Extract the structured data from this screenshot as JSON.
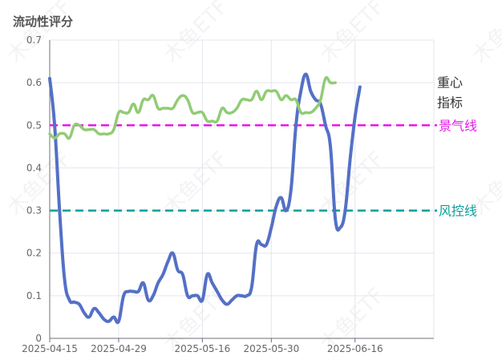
{
  "chart_data": {
    "type": "line",
    "title": "流动性评分",
    "watermark": "木鱼ETF",
    "ylim": [
      0,
      0.7
    ],
    "y_ticks": [
      "0",
      "0.1",
      "0.2",
      "0.3",
      "0.4",
      "0.5",
      "0.6",
      "0.7"
    ],
    "x_range": [
      "2025-04-15",
      "2025-07-02"
    ],
    "x_ticks": [
      "2025-04-15",
      "2025-04-29",
      "2025-05-16",
      "2025-05-30",
      "2025-06-16"
    ],
    "grid": true,
    "series": [
      {
        "name": "重心指标",
        "label_lines": [
          "重心",
          "指标"
        ],
        "color": "#5470c6",
        "points": [
          [
            "2025-04-15",
            0.61
          ],
          [
            "2025-04-16",
            0.5
          ],
          [
            "2025-04-17",
            0.3
          ],
          [
            "2025-04-18",
            0.14
          ],
          [
            "2025-04-19",
            0.09
          ],
          [
            "2025-04-20",
            0.085
          ],
          [
            "2025-04-21",
            0.08
          ],
          [
            "2025-04-22",
            0.06
          ],
          [
            "2025-04-23",
            0.05
          ],
          [
            "2025-04-24",
            0.07
          ],
          [
            "2025-04-25",
            0.06
          ],
          [
            "2025-04-26",
            0.045
          ],
          [
            "2025-04-27",
            0.04
          ],
          [
            "2025-04-28",
            0.05
          ],
          [
            "2025-04-29",
            0.04
          ],
          [
            "2025-04-30",
            0.1
          ],
          [
            "2025-05-01",
            0.11
          ],
          [
            "2025-05-02",
            0.11
          ],
          [
            "2025-05-03",
            0.11
          ],
          [
            "2025-05-04",
            0.13
          ],
          [
            "2025-05-05",
            0.09
          ],
          [
            "2025-05-06",
            0.1
          ],
          [
            "2025-05-07",
            0.13
          ],
          [
            "2025-05-08",
            0.15
          ],
          [
            "2025-05-09",
            0.18
          ],
          [
            "2025-05-10",
            0.2
          ],
          [
            "2025-05-11",
            0.16
          ],
          [
            "2025-05-12",
            0.15
          ],
          [
            "2025-05-13",
            0.1
          ],
          [
            "2025-05-14",
            0.1
          ],
          [
            "2025-05-15",
            0.1
          ],
          [
            "2025-05-16",
            0.09
          ],
          [
            "2025-05-17",
            0.15
          ],
          [
            "2025-05-18",
            0.13
          ],
          [
            "2025-05-19",
            0.11
          ],
          [
            "2025-05-20",
            0.09
          ],
          [
            "2025-05-21",
            0.08
          ],
          [
            "2025-05-22",
            0.09
          ],
          [
            "2025-05-23",
            0.1
          ],
          [
            "2025-05-24",
            0.1
          ],
          [
            "2025-05-25",
            0.1
          ],
          [
            "2025-05-26",
            0.12
          ],
          [
            "2025-05-27",
            0.22
          ],
          [
            "2025-05-28",
            0.22
          ],
          [
            "2025-05-29",
            0.22
          ],
          [
            "2025-05-30",
            0.26
          ],
          [
            "2025-05-31",
            0.31
          ],
          [
            "2025-06-01",
            0.33
          ],
          [
            "2025-06-02",
            0.3
          ],
          [
            "2025-06-03",
            0.35
          ],
          [
            "2025-06-04",
            0.5
          ],
          [
            "2025-06-05",
            0.58
          ],
          [
            "2025-06-06",
            0.62
          ],
          [
            "2025-06-07",
            0.58
          ],
          [
            "2025-06-08",
            0.56
          ],
          [
            "2025-06-09",
            0.55
          ],
          [
            "2025-06-10",
            0.5
          ],
          [
            "2025-06-11",
            0.45
          ],
          [
            "2025-06-12",
            0.28
          ],
          [
            "2025-06-13",
            0.26
          ],
          [
            "2025-06-14",
            0.3
          ],
          [
            "2025-06-15",
            0.42
          ],
          [
            "2025-06-16",
            0.52
          ],
          [
            "2025-06-17",
            0.59
          ]
        ]
      },
      {
        "name": "景气线",
        "color": "#91cc75",
        "points": [
          [
            "2025-04-15",
            0.48
          ],
          [
            "2025-04-16",
            0.47
          ],
          [
            "2025-04-17",
            0.48
          ],
          [
            "2025-04-18",
            0.48
          ],
          [
            "2025-04-19",
            0.47
          ],
          [
            "2025-04-20",
            0.5
          ],
          [
            "2025-04-21",
            0.5
          ],
          [
            "2025-04-22",
            0.49
          ],
          [
            "2025-04-23",
            0.49
          ],
          [
            "2025-04-24",
            0.49
          ],
          [
            "2025-04-25",
            0.48
          ],
          [
            "2025-04-26",
            0.48
          ],
          [
            "2025-04-27",
            0.48
          ],
          [
            "2025-04-28",
            0.49
          ],
          [
            "2025-04-29",
            0.53
          ],
          [
            "2025-04-30",
            0.53
          ],
          [
            "2025-05-01",
            0.53
          ],
          [
            "2025-05-02",
            0.55
          ],
          [
            "2025-05-03",
            0.53
          ],
          [
            "2025-05-04",
            0.56
          ],
          [
            "2025-05-05",
            0.56
          ],
          [
            "2025-05-06",
            0.57
          ],
          [
            "2025-05-07",
            0.54
          ],
          [
            "2025-05-08",
            0.54
          ],
          [
            "2025-05-09",
            0.54
          ],
          [
            "2025-05-10",
            0.54
          ],
          [
            "2025-05-11",
            0.56
          ],
          [
            "2025-05-12",
            0.57
          ],
          [
            "2025-05-13",
            0.56
          ],
          [
            "2025-05-14",
            0.53
          ],
          [
            "2025-05-15",
            0.53
          ],
          [
            "2025-05-16",
            0.53
          ],
          [
            "2025-05-17",
            0.51
          ],
          [
            "2025-05-18",
            0.51
          ],
          [
            "2025-05-19",
            0.51
          ],
          [
            "2025-05-20",
            0.54
          ],
          [
            "2025-05-21",
            0.53
          ],
          [
            "2025-05-22",
            0.53
          ],
          [
            "2025-05-23",
            0.54
          ],
          [
            "2025-05-24",
            0.56
          ],
          [
            "2025-05-25",
            0.56
          ],
          [
            "2025-05-26",
            0.56
          ],
          [
            "2025-05-27",
            0.58
          ],
          [
            "2025-05-28",
            0.56
          ],
          [
            "2025-05-29",
            0.58
          ],
          [
            "2025-05-30",
            0.58
          ],
          [
            "2025-05-31",
            0.58
          ],
          [
            "2025-06-01",
            0.56
          ],
          [
            "2025-06-02",
            0.57
          ],
          [
            "2025-06-03",
            0.56
          ],
          [
            "2025-06-04",
            0.56
          ],
          [
            "2025-06-05",
            0.53
          ],
          [
            "2025-06-06",
            0.53
          ],
          [
            "2025-06-07",
            0.53
          ],
          [
            "2025-06-08",
            0.54
          ],
          [
            "2025-06-09",
            0.56
          ],
          [
            "2025-06-10",
            0.61
          ],
          [
            "2025-06-11",
            0.6
          ],
          [
            "2025-06-12",
            0.6
          ]
        ]
      }
    ],
    "reference_lines": [
      {
        "name": "景气线",
        "value": 0.5,
        "color": "#e619e6",
        "style": "dashed"
      },
      {
        "name": "风控线",
        "value": 0.3,
        "color": "#0a9e9a",
        "style": "dashed"
      }
    ]
  }
}
